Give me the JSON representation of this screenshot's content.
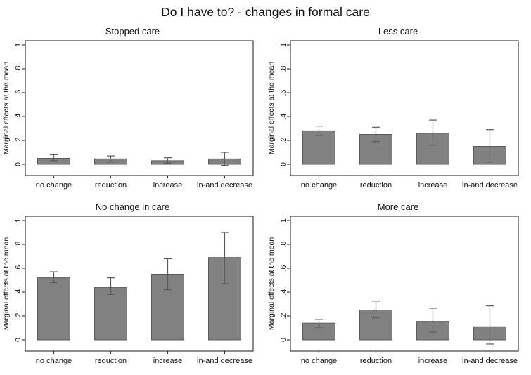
{
  "figure": {
    "title": "Do I have to? - changes in formal care"
  },
  "colors": {
    "bar_fill": "#818181",
    "bar_stroke": "#5a5a5a",
    "error_bar": "#5a5a5a",
    "axis": "#2b2b2b",
    "text": "#111111"
  },
  "axis_labels": {
    "y": "Marginal effects at the mean"
  },
  "chart_data": [
    {
      "type": "bar",
      "title": "Stopped care",
      "categories": [
        "no change",
        "reduction",
        "increase",
        "in-and decrease"
      ],
      "values": [
        0.05,
        0.045,
        0.03,
        0.045
      ],
      "ci_low": [
        0.03,
        0.02,
        0.01,
        -0.01
      ],
      "ci_high": [
        0.08,
        0.07,
        0.055,
        0.1
      ],
      "xlabel": "",
      "ylabel": "Marginal effects at the mean",
      "ylim": [
        0,
        1
      ],
      "ytick_values": [
        0,
        0.2,
        0.4,
        0.6,
        0.8,
        1
      ],
      "ytick_labels": [
        "0",
        ".2",
        ".4",
        ".6",
        ".8",
        "1"
      ],
      "grid": false,
      "legend": "none"
    },
    {
      "type": "bar",
      "title": "Less care",
      "categories": [
        "no change",
        "reduction",
        "increase",
        "in-and decrease"
      ],
      "values": [
        0.28,
        0.25,
        0.26,
        0.15
      ],
      "ci_low": [
        0.24,
        0.19,
        0.16,
        0.02
      ],
      "ci_high": [
        0.32,
        0.31,
        0.37,
        0.29
      ],
      "xlabel": "",
      "ylabel": "Marginal effects at the mean",
      "ylim": [
        0,
        1
      ],
      "ytick_values": [
        0,
        0.2,
        0.4,
        0.6,
        0.8,
        1
      ],
      "ytick_labels": [
        "0",
        ".2",
        ".4",
        ".6",
        ".8",
        "1"
      ],
      "grid": false,
      "legend": "none"
    },
    {
      "type": "bar",
      "title": "No change in care",
      "categories": [
        "no change",
        "reduction",
        "increase",
        "in-and decrease"
      ],
      "values": [
        0.52,
        0.44,
        0.55,
        0.69
      ],
      "ci_low": [
        0.48,
        0.38,
        0.42,
        0.47
      ],
      "ci_high": [
        0.57,
        0.52,
        0.68,
        0.9
      ],
      "xlabel": "",
      "ylabel": "Marginal effects at the mean",
      "ylim": [
        0,
        1
      ],
      "ytick_values": [
        0,
        0.2,
        0.4,
        0.6,
        0.8,
        1
      ],
      "ytick_labels": [
        "0",
        ".2",
        ".4",
        ".6",
        ".8",
        "1"
      ],
      "grid": false,
      "legend": "none"
    },
    {
      "type": "bar",
      "title": "More care",
      "categories": [
        "no change",
        "reduction",
        "increase",
        "in-and decrease"
      ],
      "values": [
        0.14,
        0.25,
        0.155,
        0.11
      ],
      "ci_low": [
        0.105,
        0.185,
        0.065,
        -0.035
      ],
      "ci_high": [
        0.17,
        0.325,
        0.265,
        0.285
      ],
      "xlabel": "",
      "ylabel": "Marginal effects at the mean",
      "ylim": [
        0,
        1
      ],
      "ytick_values": [
        0,
        0.2,
        0.4,
        0.6,
        0.8,
        1
      ],
      "ytick_labels": [
        "0",
        ".2",
        ".4",
        ".6",
        ".8",
        "1"
      ],
      "grid": false,
      "legend": "none"
    }
  ]
}
